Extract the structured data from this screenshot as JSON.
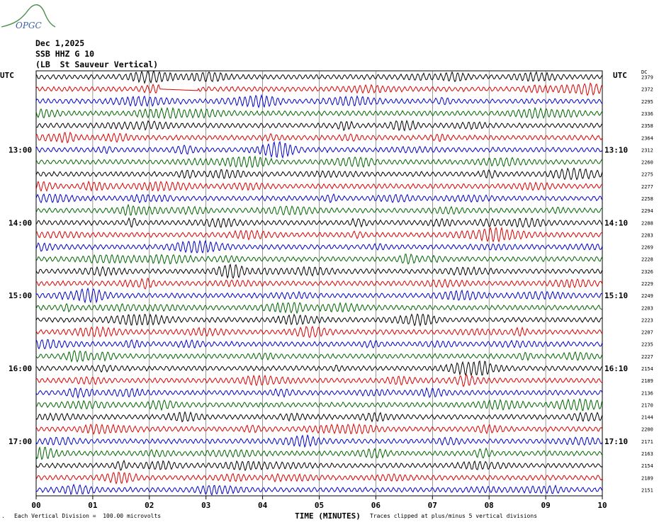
{
  "logo": {
    "text": "OPGC",
    "color": "#4b8f4b",
    "text_color": "#3a5fa8"
  },
  "header": {
    "date": "Dec 1,2025",
    "station": "SSB HHZ G 10",
    "description": "(LB  St Sauveur Vertical)"
  },
  "labels": {
    "left_tz": "UTC",
    "right_tz": "UTC",
    "dc_label": "DC",
    "xlabel": "TIME (MINUTES)"
  },
  "footer": {
    "scale": "Each Vertical Division =  100.00 microvolts",
    "clip": "Traces clipped at plus/minus 5 vertical divisions"
  },
  "chart_data": {
    "type": "line",
    "title": "Dec 1,2025 SSB HHZ G 10 (LB  St Sauveur Vertical)",
    "xlabel": "TIME (MINUTES)",
    "xlim": [
      0,
      10
    ],
    "x_ticks": [
      "00",
      "01",
      "02",
      "03",
      "04",
      "05",
      "06",
      "07",
      "08",
      "09",
      "10"
    ],
    "left_hour_labels": [
      "13:00",
      "14:00",
      "15:00",
      "16:00",
      "17:00"
    ],
    "right_hour_labels": [
      "13:10",
      "14:10",
      "15:10",
      "16:10",
      "17:10"
    ],
    "trace_colors": [
      "#000000",
      "#dd0000",
      "#0000cc",
      "#006600"
    ],
    "dc_offsets": [
      "2379",
      "2372",
      "2295",
      "2336",
      "2358",
      "2364",
      "2312",
      "2260",
      "2275",
      "2277",
      "2258",
      "2294",
      "2288",
      "2283",
      "2269",
      "2228",
      "2326",
      "2229",
      "2249",
      "2203",
      "2223",
      "2207",
      "2235",
      "2227",
      "2154",
      "2189",
      "2136",
      "2170",
      "2144",
      "2200",
      "2171",
      "2163",
      "2154",
      "2189",
      "2151"
    ],
    "grid": "vertical lines each minute",
    "scale_per_division_microvolts": 100.0,
    "clip_divisions": 5
  }
}
